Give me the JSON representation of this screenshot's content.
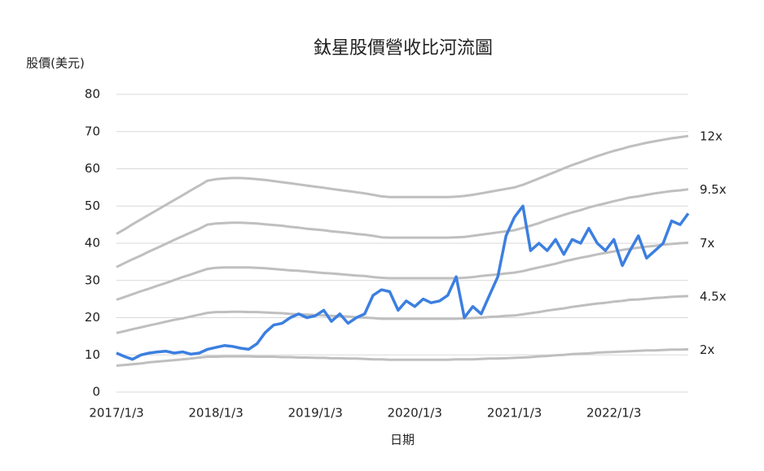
{
  "chart_data": {
    "type": "line",
    "title": "鈦星股價營收比河流圖",
    "y_label": "股價(美元)",
    "x_label": "日期",
    "x": [
      "2017/1/3",
      "2017/2/3",
      "2017/3/3",
      "2017/4/3",
      "2017/5/3",
      "2017/6/3",
      "2017/7/3",
      "2017/8/3",
      "2017/9/3",
      "2017/10/3",
      "2017/11/3",
      "2017/12/3",
      "2018/1/3",
      "2018/2/3",
      "2018/3/3",
      "2018/4/3",
      "2018/5/3",
      "2018/6/3",
      "2018/7/3",
      "2018/8/3",
      "2018/9/3",
      "2018/10/3",
      "2018/11/3",
      "2018/12/3",
      "2019/1/3",
      "2019/2/3",
      "2019/3/3",
      "2019/4/3",
      "2019/5/3",
      "2019/6/3",
      "2019/7/3",
      "2019/8/3",
      "2019/9/3",
      "2019/10/3",
      "2019/11/3",
      "2019/12/3",
      "2020/1/3",
      "2020/2/3",
      "2020/3/3",
      "2020/4/3",
      "2020/5/3",
      "2020/6/3",
      "2020/7/3",
      "2020/8/3",
      "2020/9/3",
      "2020/10/3",
      "2020/11/3",
      "2020/12/3",
      "2021/1/3",
      "2021/2/3",
      "2021/3/3",
      "2021/4/3",
      "2021/5/3",
      "2021/6/3",
      "2021/7/3",
      "2021/8/3",
      "2021/9/3",
      "2021/10/3",
      "2021/11/3",
      "2021/12/3",
      "2022/1/3",
      "2022/2/3",
      "2022/3/3",
      "2022/4/3",
      "2022/5/3",
      "2022/6/3",
      "2022/7/3",
      "2022/8/3",
      "2022/9/3",
      "2022/10/3"
    ],
    "series": [
      {
        "name": "12x",
        "color": "#bfbfbf",
        "values": [
          42.5,
          43.8,
          45.1,
          46.4,
          47.7,
          49,
          50.3,
          51.6,
          52.9,
          54.2,
          55.5,
          56.8,
          57.2,
          57.4,
          57.5,
          57.5,
          57.4,
          57.2,
          57,
          56.7,
          56.4,
          56.1,
          55.8,
          55.5,
          55.2,
          54.9,
          54.6,
          54.3,
          54,
          53.7,
          53.4,
          53,
          52.6,
          52.4,
          52.4,
          52.4,
          52.4,
          52.4,
          52.4,
          52.4,
          52.4,
          52.5,
          52.7,
          53,
          53.4,
          53.8,
          54.2,
          54.6,
          55,
          55.7,
          56.5,
          57.4,
          58.3,
          59.2,
          60.1,
          61,
          61.8,
          62.6,
          63.4,
          64.1,
          64.8,
          65.4,
          66,
          66.5,
          67,
          67.4,
          67.8,
          68.2,
          68.5,
          68.8
        ]
      },
      {
        "name": "9.5x",
        "color": "#bfbfbf",
        "values": [
          33.6,
          34.7,
          35.7,
          36.7,
          37.8,
          38.8,
          39.8,
          40.9,
          41.9,
          42.9,
          43.9,
          45.0,
          45.3,
          45.4,
          45.5,
          45.5,
          45.4,
          45.3,
          45.1,
          44.9,
          44.7,
          44.4,
          44.2,
          43.9,
          43.7,
          43.5,
          43.2,
          43.0,
          42.8,
          42.5,
          42.3,
          42.0,
          41.6,
          41.5,
          41.5,
          41.5,
          41.5,
          41.5,
          41.5,
          41.5,
          41.5,
          41.6,
          41.7,
          42.0,
          42.3,
          42.6,
          42.9,
          43.2,
          43.5,
          44.1,
          44.7,
          45.4,
          46.2,
          46.9,
          47.6,
          48.3,
          48.9,
          49.6,
          50.2,
          50.7,
          51.3,
          51.8,
          52.3,
          52.6,
          53.0,
          53.4,
          53.7,
          54.0,
          54.2,
          54.5
        ]
      },
      {
        "name": "7x",
        "color": "#bfbfbf",
        "values": [
          24.8,
          25.6,
          26.3,
          27.1,
          27.8,
          28.6,
          29.3,
          30.1,
          30.9,
          31.6,
          32.4,
          33.1,
          33.4,
          33.5,
          33.5,
          33.5,
          33.5,
          33.4,
          33.3,
          33.1,
          32.9,
          32.7,
          32.6,
          32.4,
          32.2,
          32.0,
          31.9,
          31.7,
          31.5,
          31.3,
          31.2,
          30.9,
          30.7,
          30.6,
          30.6,
          30.6,
          30.6,
          30.6,
          30.6,
          30.6,
          30.6,
          30.6,
          30.7,
          30.9,
          31.2,
          31.4,
          31.6,
          31.9,
          32.1,
          32.5,
          33.0,
          33.5,
          34.0,
          34.5,
          35.1,
          35.6,
          36.1,
          36.5,
          37.0,
          37.4,
          37.8,
          38.2,
          38.5,
          38.8,
          39.1,
          39.3,
          39.6,
          39.8,
          40.0,
          40.1
        ]
      },
      {
        "name": "4.5x",
        "color": "#bfbfbf",
        "values": [
          15.9,
          16.4,
          16.9,
          17.4,
          17.9,
          18.4,
          18.9,
          19.4,
          19.8,
          20.3,
          20.8,
          21.3,
          21.5,
          21.5,
          21.6,
          21.6,
          21.5,
          21.5,
          21.4,
          21.3,
          21.2,
          21.0,
          20.9,
          20.8,
          20.7,
          20.6,
          20.5,
          20.4,
          20.3,
          20.1,
          20.0,
          19.9,
          19.7,
          19.7,
          19.7,
          19.7,
          19.7,
          19.7,
          19.7,
          19.7,
          19.7,
          19.7,
          19.8,
          19.9,
          20.0,
          20.2,
          20.3,
          20.5,
          20.6,
          20.9,
          21.2,
          21.5,
          21.9,
          22.2,
          22.5,
          22.9,
          23.2,
          23.5,
          23.8,
          24.0,
          24.3,
          24.5,
          24.8,
          24.9,
          25.1,
          25.3,
          25.4,
          25.6,
          25.7,
          25.8
        ]
      },
      {
        "name": "2x",
        "color": "#bfbfbf",
        "values": [
          7.1,
          7.3,
          7.5,
          7.7,
          8.0,
          8.2,
          8.4,
          8.6,
          8.8,
          9.0,
          9.3,
          9.5,
          9.5,
          9.6,
          9.6,
          9.6,
          9.6,
          9.5,
          9.5,
          9.5,
          9.4,
          9.4,
          9.3,
          9.3,
          9.2,
          9.2,
          9.1,
          9.1,
          9.0,
          9.0,
          8.9,
          8.8,
          8.8,
          8.7,
          8.7,
          8.7,
          8.7,
          8.7,
          8.7,
          8.7,
          8.7,
          8.8,
          8.8,
          8.8,
          8.9,
          9.0,
          9.0,
          9.1,
          9.2,
          9.3,
          9.4,
          9.6,
          9.7,
          9.9,
          10.0,
          10.2,
          10.3,
          10.4,
          10.6,
          10.7,
          10.8,
          10.9,
          11.0,
          11.1,
          11.2,
          11.2,
          11.3,
          11.4,
          11.4,
          11.5
        ]
      },
      {
        "color": "#3c7fe0",
        "values": [
          10.5,
          9.5,
          8.8,
          10,
          10.5,
          10.8,
          11,
          10.5,
          10.8,
          10.2,
          10.5,
          11.5,
          12,
          12.5,
          12.3,
          11.8,
          11.5,
          13,
          16,
          18,
          18.5,
          20,
          21,
          20,
          20.5,
          22,
          19,
          21,
          18.5,
          20,
          21,
          26,
          27.5,
          27,
          22,
          24.5,
          23,
          25,
          24,
          24.5,
          26,
          31,
          20,
          23,
          21,
          26,
          31,
          42,
          47,
          50,
          38,
          40,
          38,
          41,
          37,
          41,
          40,
          44,
          40,
          38,
          41,
          34,
          38,
          42,
          36,
          38,
          40,
          46,
          45,
          48
        ]
      }
    ],
    "xlim": [
      "2017/1/3",
      "2022/10/3"
    ],
    "xticks": [
      "2017/1/3",
      "2018/1/3",
      "2019/1/3",
      "2020/1/3",
      "2021/1/3",
      "2022/1/3"
    ],
    "ylim": [
      0,
      80
    ],
    "yticks": [
      0,
      10,
      20,
      30,
      40,
      50,
      60,
      70,
      80
    ],
    "grid": true
  }
}
